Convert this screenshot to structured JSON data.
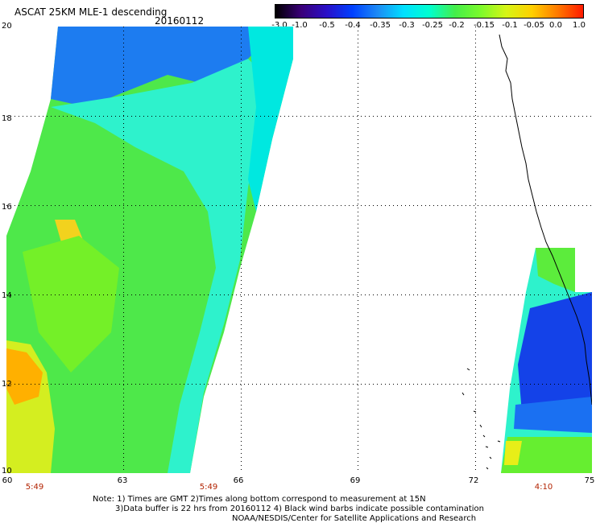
{
  "header": {
    "title": "ASCAT 25KM MLE-1 descending",
    "date": "20160112"
  },
  "colorbar": {
    "labels": [
      "-3.0",
      "-1.0",
      "-0.5",
      "-0.4",
      "-0.35",
      "-0.3",
      "-0.25",
      "-0.2",
      "-0.15",
      "-0.1",
      "-0.05",
      "0.0",
      "1.0"
    ],
    "colors": [
      "#000000",
      "#3a0078",
      "#2a10c8",
      "#0040ff",
      "#1d8cf5",
      "#00e0ff",
      "#00ffd0",
      "#44ee4a",
      "#7cfa2c",
      "#d6f516",
      "#ffd000",
      "#ff7a00",
      "#ff1a00"
    ]
  },
  "map": {
    "lat_labels": [
      "20",
      "18",
      "16",
      "14",
      "12",
      "10"
    ],
    "lon_labels": [
      "60",
      "63",
      "66",
      "69",
      "72",
      "75"
    ],
    "pass_times": [
      {
        "lon": "60",
        "time": "5:49"
      },
      {
        "lon": "66",
        "time": "5:49"
      },
      {
        "lon": "75",
        "time": "4:10"
      }
    ]
  },
  "footer": {
    "line1": "Note: 1) Times are GMT 2)Times along bottom correspond to measurement at 15N",
    "line2": "3)Data buffer is 22 hrs from 20160112 4) Black wind barbs indicate possible contamination",
    "line3": "NOAA/NESDIS/Center for Satellite Applications and Research"
  }
}
